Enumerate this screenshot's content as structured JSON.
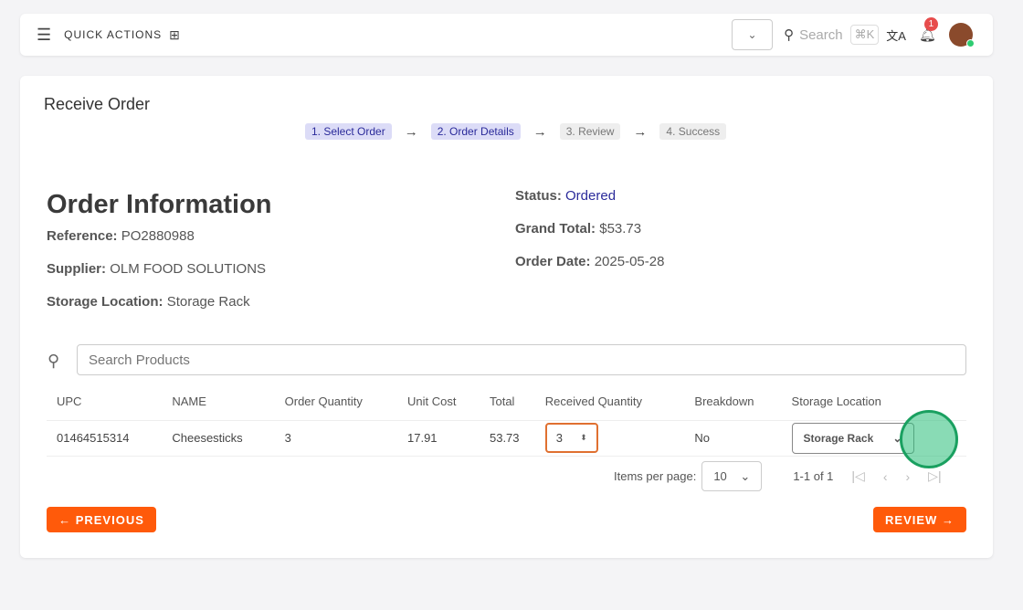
{
  "topbar": {
    "quick_actions": "QUICK ACTIONS",
    "search_placeholder": "Search",
    "shortcut": "⌘K",
    "notification_count": "1"
  },
  "page": {
    "title": "Receive Order",
    "steps": [
      "1. Select Order",
      "2. Order Details",
      "3. Review",
      "4. Success"
    ],
    "active_steps": [
      1,
      2
    ]
  },
  "order": {
    "heading": "Order Information",
    "reference_label": "Reference:",
    "reference": "PO2880988",
    "supplier_label": "Supplier:",
    "supplier": "OLM FOOD SOLUTIONS",
    "storage_label": "Storage Location:",
    "storage": "Storage Rack",
    "status_label": "Status:",
    "status": "Ordered",
    "total_label": "Grand Total:",
    "total": "$53.73",
    "date_label": "Order Date:",
    "date": "2025-05-28"
  },
  "search": {
    "placeholder": "Search Products"
  },
  "table": {
    "headers": [
      "UPC",
      "NAME",
      "Order Quantity",
      "Unit Cost",
      "Total",
      "Received Quantity",
      "Breakdown",
      "Storage Location"
    ],
    "rows": [
      {
        "upc": "01464515314",
        "name": "Cheesesticks",
        "order_qty": "3",
        "unit_cost": "17.91",
        "total": "53.73",
        "received_qty": "3",
        "breakdown": "No",
        "storage": "Storage Rack"
      }
    ]
  },
  "pager": {
    "label": "Items per page:",
    "per_page": "10",
    "range": "1-1 of 1"
  },
  "buttons": {
    "previous": "← PREVIOUS",
    "review": "REVIEW →"
  },
  "colors": {
    "accent": "#ff5a0a",
    "status": "#2a2a9a"
  }
}
